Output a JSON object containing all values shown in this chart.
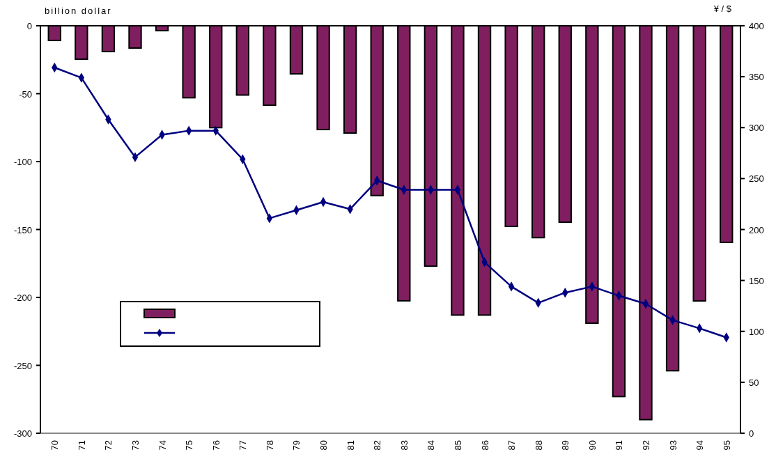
{
  "chart_data": {
    "type": "bar",
    "ylabel": "billion dollar",
    "y2label": "¥ / $",
    "categories": [
      "70",
      "71",
      "72",
      "73",
      "74",
      "75",
      "76",
      "77",
      "78",
      "79",
      "80",
      "81",
      "82",
      "83",
      "84",
      "85",
      "86",
      "87",
      "88",
      "89",
      "90",
      "91",
      "92",
      "93",
      "94",
      "95"
    ],
    "series": [
      {
        "color": "#7f1f5f",
        "values": [
          -10.8,
          -24.6,
          -19,
          -16.4,
          -3.6,
          -53,
          -75,
          -51,
          -58.5,
          -35.4,
          -76.4,
          -79,
          -125,
          -202.5,
          -177,
          -213,
          -213,
          -147.7,
          -156,
          -144.6,
          -219,
          -273,
          -290,
          -254,
          -202.6,
          -159.5
        ]
      },
      {
        "type": "line",
        "axis": "y2",
        "color": "#000080",
        "marker": "diamond",
        "values": [
          359,
          349,
          308,
          271,
          293,
          297,
          297,
          269,
          211,
          219,
          227,
          220,
          248,
          239,
          239,
          239,
          168,
          144,
          128,
          138,
          144,
          135,
          127,
          111,
          103,
          94
        ]
      }
    ],
    "ylim": [
      -300,
      0
    ],
    "yticks": [
      -300,
      -250,
      -200,
      -150,
      -100,
      -50,
      0
    ],
    "y2lim": [
      0,
      400
    ],
    "y2ticks": [
      0,
      50,
      100,
      150,
      200,
      250,
      300,
      350,
      400
    ],
    "grid": false
  }
}
